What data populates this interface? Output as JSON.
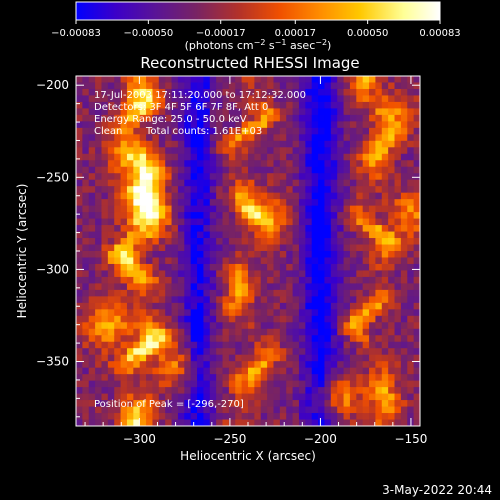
{
  "chart_data": {
    "type": "heatmap",
    "title": "Reconstructed RHESSI Image",
    "xlabel": "Heliocentric X (arcsec)",
    "ylabel": "Heliocentric Y (arcsec)",
    "xlim": [
      -335,
      -145
    ],
    "ylim": [
      -385,
      -195
    ],
    "x_ticks": [
      -300,
      -250,
      -200,
      -150
    ],
    "x_tick_labels": [
      "−300",
      "−250",
      "−200",
      "−150"
    ],
    "y_ticks": [
      -200,
      -250,
      -300,
      -350
    ],
    "y_tick_labels": [
      "−200",
      "−250",
      "−300",
      "−350"
    ],
    "colorbar": {
      "min": -0.00083,
      "max": 0.00083,
      "tick_values": [
        -0.00083,
        -0.0005,
        -0.00017,
        0.00017,
        0.0005,
        0.00083
      ],
      "tick_labels": [
        "−0.00083",
        "−0.00050",
        "−0.00017",
        "0.00017",
        "0.00050",
        "0.00083"
      ],
      "units_text": "(photons cm",
      "units_exp1": "−2",
      "units_mid": " s",
      "units_exp2": "−1",
      "units_mid2": " asec",
      "units_exp3": "−2",
      "units_end": ")",
      "colormap": [
        "#0000ff",
        "#3c00c8",
        "#5a1496",
        "#782364",
        "#b43228",
        "#f05000",
        "#ff8c00",
        "#ffc800",
        "#ffff96",
        "#ffffff"
      ]
    },
    "annotations": {
      "time_range": "17-Jul-2003 17:11:20.000 to 17:12:32.000",
      "detectors": "Detectors: 3F 4F 5F 6F 7F 8F, Att 0",
      "energy_range": "Energy Range: 25.0 - 50.0 keV",
      "method": "Clean",
      "total_counts": "Total counts: 1.61E+03",
      "peak": "Position of Peak = [-296,-270]"
    },
    "peak": {
      "x": -296,
      "y": -270
    },
    "ridges": [
      {
        "x0": -300,
        "amp": 1.0,
        "width": 9,
        "wobble": 6
      },
      {
        "x0": -240,
        "amp": 0.7,
        "width": 8,
        "wobble": 8
      },
      {
        "x0": -170,
        "amp": 0.75,
        "width": 8,
        "wobble": 7
      }
    ],
    "troughs": [
      {
        "x0": -268,
        "amp": -0.55,
        "width": 9
      },
      {
        "x0": -200,
        "amp": -0.65,
        "width": 10
      }
    ],
    "hotspots": [
      {
        "x": -296,
        "y": -270,
        "amp": 0.9
      },
      {
        "x": -305,
        "y": -240,
        "amp": 0.6
      },
      {
        "x": -318,
        "y": -330,
        "amp": 0.7
      },
      {
        "x": -280,
        "y": -352,
        "amp": 0.55
      },
      {
        "x": -190,
        "y": -370,
        "amp": 0.65
      },
      {
        "x": -160,
        "y": -215,
        "amp": 0.5
      },
      {
        "x": -230,
        "y": -270,
        "amp": 0.45
      },
      {
        "x": -150,
        "y": -270,
        "amp": 0.55
      }
    ],
    "grid": false
  },
  "timestamp": "3-May-2022 20:44"
}
